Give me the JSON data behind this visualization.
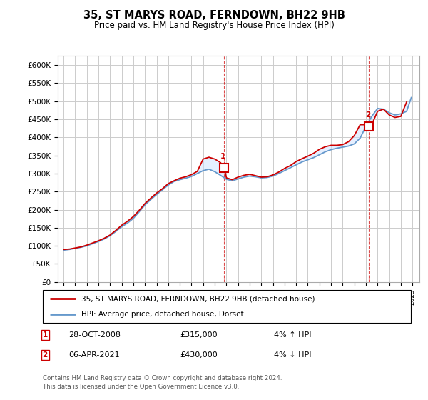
{
  "title": "35, ST MARYS ROAD, FERNDOWN, BH22 9HB",
  "subtitle": "Price paid vs. HM Land Registry's House Price Index (HPI)",
  "legend_line1": "35, ST MARYS ROAD, FERNDOWN, BH22 9HB (detached house)",
  "legend_line2": "HPI: Average price, detached house, Dorset",
  "marker1_year": 2008.82,
  "marker1_value": 315000,
  "marker2_year": 2021.27,
  "marker2_value": 430000,
  "footer": "Contains HM Land Registry data © Crown copyright and database right 2024.\nThis data is licensed under the Open Government Licence v3.0.",
  "line_color_red": "#cc0000",
  "line_color_blue": "#6699cc",
  "fill_color_blue": "#cce0ff",
  "background_color": "#ffffff",
  "grid_color": "#cccccc",
  "hpi_x": [
    1995,
    1995.5,
    1996,
    1996.5,
    1997,
    1997.5,
    1998,
    1998.5,
    1999,
    1999.5,
    2000,
    2000.5,
    2001,
    2001.5,
    2002,
    2002.5,
    2003,
    2003.5,
    2004,
    2004.5,
    2005,
    2005.5,
    2006,
    2006.5,
    2007,
    2007.5,
    2008,
    2008.5,
    2009,
    2009.5,
    2010,
    2010.5,
    2011,
    2011.5,
    2012,
    2012.5,
    2013,
    2013.5,
    2014,
    2014.5,
    2015,
    2015.5,
    2016,
    2016.5,
    2017,
    2017.5,
    2018,
    2018.5,
    2019,
    2019.5,
    2020,
    2020.5,
    2021,
    2021.5,
    2022,
    2022.5,
    2023,
    2023.5,
    2024,
    2024.5,
    2024.9
  ],
  "hpi_y": [
    88000,
    90000,
    93000,
    96000,
    100000,
    106000,
    112000,
    119000,
    128000,
    140000,
    153000,
    163000,
    176000,
    194000,
    213000,
    228000,
    242000,
    255000,
    268000,
    278000,
    283000,
    287000,
    292000,
    300000,
    308000,
    312000,
    305000,
    295000,
    284000,
    280000,
    285000,
    290000,
    293000,
    291000,
    288000,
    289000,
    293000,
    300000,
    308000,
    316000,
    324000,
    332000,
    338000,
    344000,
    352000,
    360000,
    366000,
    370000,
    373000,
    376000,
    382000,
    398000,
    430000,
    458000,
    480000,
    478000,
    468000,
    462000,
    465000,
    472000,
    510000
  ],
  "red_x": [
    1995,
    1995.5,
    1996,
    1996.5,
    1997,
    1997.5,
    1998,
    1998.5,
    1999,
    1999.5,
    2000,
    2000.5,
    2001,
    2001.5,
    2002,
    2002.5,
    2003,
    2003.5,
    2004,
    2004.5,
    2005,
    2005.5,
    2006,
    2006.5,
    2007,
    2007.5,
    2008,
    2008.5,
    2008.82,
    2009,
    2009.5,
    2010,
    2010.5,
    2011,
    2011.5,
    2012,
    2012.5,
    2013,
    2013.5,
    2014,
    2014.5,
    2015,
    2015.5,
    2016,
    2016.5,
    2017,
    2017.5,
    2018,
    2018.5,
    2019,
    2019.5,
    2020,
    2020.5,
    2021,
    2021.27,
    2021.5,
    2022,
    2022.5,
    2023,
    2023.5,
    2024,
    2024.5
  ],
  "red_y": [
    90000,
    91000,
    94000,
    97000,
    102000,
    108000,
    114000,
    121000,
    130000,
    143000,
    157000,
    168000,
    181000,
    198000,
    217000,
    232000,
    246000,
    258000,
    272000,
    280000,
    287000,
    291000,
    297000,
    306000,
    340000,
    345000,
    340000,
    330000,
    315000,
    288000,
    283000,
    290000,
    295000,
    298000,
    294000,
    290000,
    291000,
    296000,
    304000,
    314000,
    322000,
    333000,
    341000,
    348000,
    356000,
    367000,
    374000,
    378000,
    378000,
    380000,
    388000,
    405000,
    435000,
    435000,
    430000,
    435000,
    472000,
    478000,
    462000,
    455000,
    458000,
    498000
  ]
}
